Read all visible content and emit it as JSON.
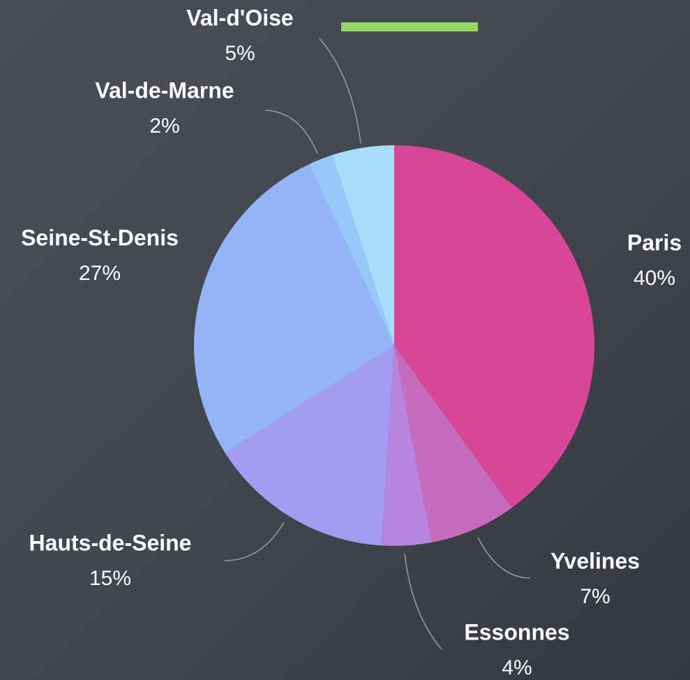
{
  "chart_data": {
    "type": "pie",
    "categories": [
      "Paris",
      "Yvelines",
      "Essonnes",
      "Hauts-de-Seine",
      "Seine-St-Denis",
      "Val-de-Marne",
      "Val-d'Oise"
    ],
    "values": [
      40,
      7,
      4,
      15,
      27,
      2,
      5
    ],
    "value_labels": [
      "40%",
      "7%",
      "4%",
      "15%",
      "27%",
      "2%",
      "5%"
    ],
    "colors": [
      "#d84797",
      "#c96bbd",
      "#b884dd",
      "#a49cf0",
      "#95b4f8",
      "#94c9fa",
      "#a7dcfb"
    ]
  }
}
